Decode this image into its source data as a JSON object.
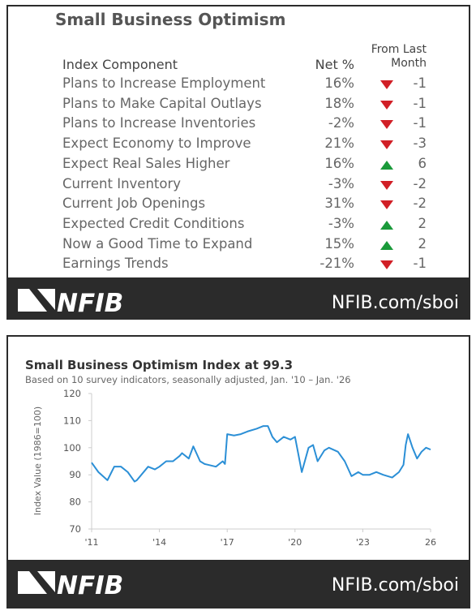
{
  "table": {
    "title": "Small Business Optimism",
    "header": [
      "Index Component",
      "Net %",
      "From Last Month"
    ],
    "rows": [
      [
        "Plans to Increase Employment",
        "16%",
        -1
      ],
      [
        "Plans to Make Capital Outlays",
        "18%",
        -1
      ],
      [
        "Plans to Increase Inventories",
        "-2%",
        -1
      ],
      [
        "Expect Economy to Improve",
        "21%",
        -3
      ],
      [
        "Expect Real Sales Higher",
        "16%",
        6
      ],
      [
        "Current Inventory",
        "-3%",
        -2
      ],
      [
        "Current Job Openings",
        "31%",
        -2
      ],
      [
        "Expected Credit Conditions",
        "-3%",
        2
      ],
      [
        "Now a Good Time to Expand",
        "15%",
        2
      ],
      [
        "Earnings Trends",
        "-21%",
        -1
      ]
    ]
  },
  "footer": {
    "logo": "NFIB",
    "url": "NFIB.com/sboi"
  },
  "chart_data": {
    "type": "line",
    "title": "Small Business Optimism Index at 99.3",
    "subtitle": "Based on 10 survey indicators, seasonally adjusted,  Jan. '10 – Jan. '26",
    "y_label": "Index Value (1986=100)",
    "color": "#2b8fd6",
    "x": [
      2011.0,
      2011.3,
      2011.5,
      2011.7,
      2012.0,
      2012.3,
      2012.6,
      2012.9,
      2013.0,
      2013.5,
      2013.8,
      2014.0,
      2014.3,
      2014.6,
      2014.9,
      2015.0,
      2015.3,
      2015.5,
      2015.8,
      2016.0,
      2016.5,
      2016.8,
      2016.9,
      2017.0,
      2017.3,
      2017.6,
      2017.9,
      2018.3,
      2018.6,
      2018.8,
      2019.0,
      2019.2,
      2019.5,
      2019.8,
      2020.0,
      2020.3,
      2020.6,
      2020.8,
      2021.0,
      2021.3,
      2021.5,
      2021.9,
      2022.2,
      2022.5,
      2022.8,
      2023.0,
      2023.3,
      2023.6,
      2023.9,
      2024.3,
      2024.6,
      2024.8,
      2024.9,
      2025.0,
      2025.2,
      2025.4,
      2025.6,
      2025.8,
      2026.0
    ],
    "values": [
      94.5,
      91,
      89.5,
      88,
      93,
      93,
      91,
      87.5,
      88,
      93,
      92,
      93,
      95,
      95,
      97,
      98,
      96,
      100.5,
      95,
      94,
      93,
      95,
      94,
      105,
      104.5,
      105,
      106,
      107,
      108,
      108,
      104,
      102,
      104,
      103,
      104,
      91,
      100,
      101,
      95,
      99,
      100,
      98.5,
      95,
      89.5,
      91,
      90,
      90,
      91,
      90,
      89,
      91,
      93.7,
      101,
      105,
      100,
      96,
      98.5,
      100,
      99.3
    ],
    "xlim": [
      2011,
      2026
    ],
    "ylim": [
      70,
      120
    ],
    "yticks": [
      70,
      80,
      90,
      100,
      110,
      120
    ],
    "xticks": [
      {
        "value": 2011,
        "label": "'11"
      },
      {
        "value": 2014,
        "label": "'14"
      },
      {
        "value": 2017,
        "label": "'17"
      },
      {
        "value": 2020,
        "label": "'20"
      },
      {
        "value": 2023,
        "label": "'23"
      },
      {
        "value": 2026,
        "label": "26"
      }
    ]
  }
}
